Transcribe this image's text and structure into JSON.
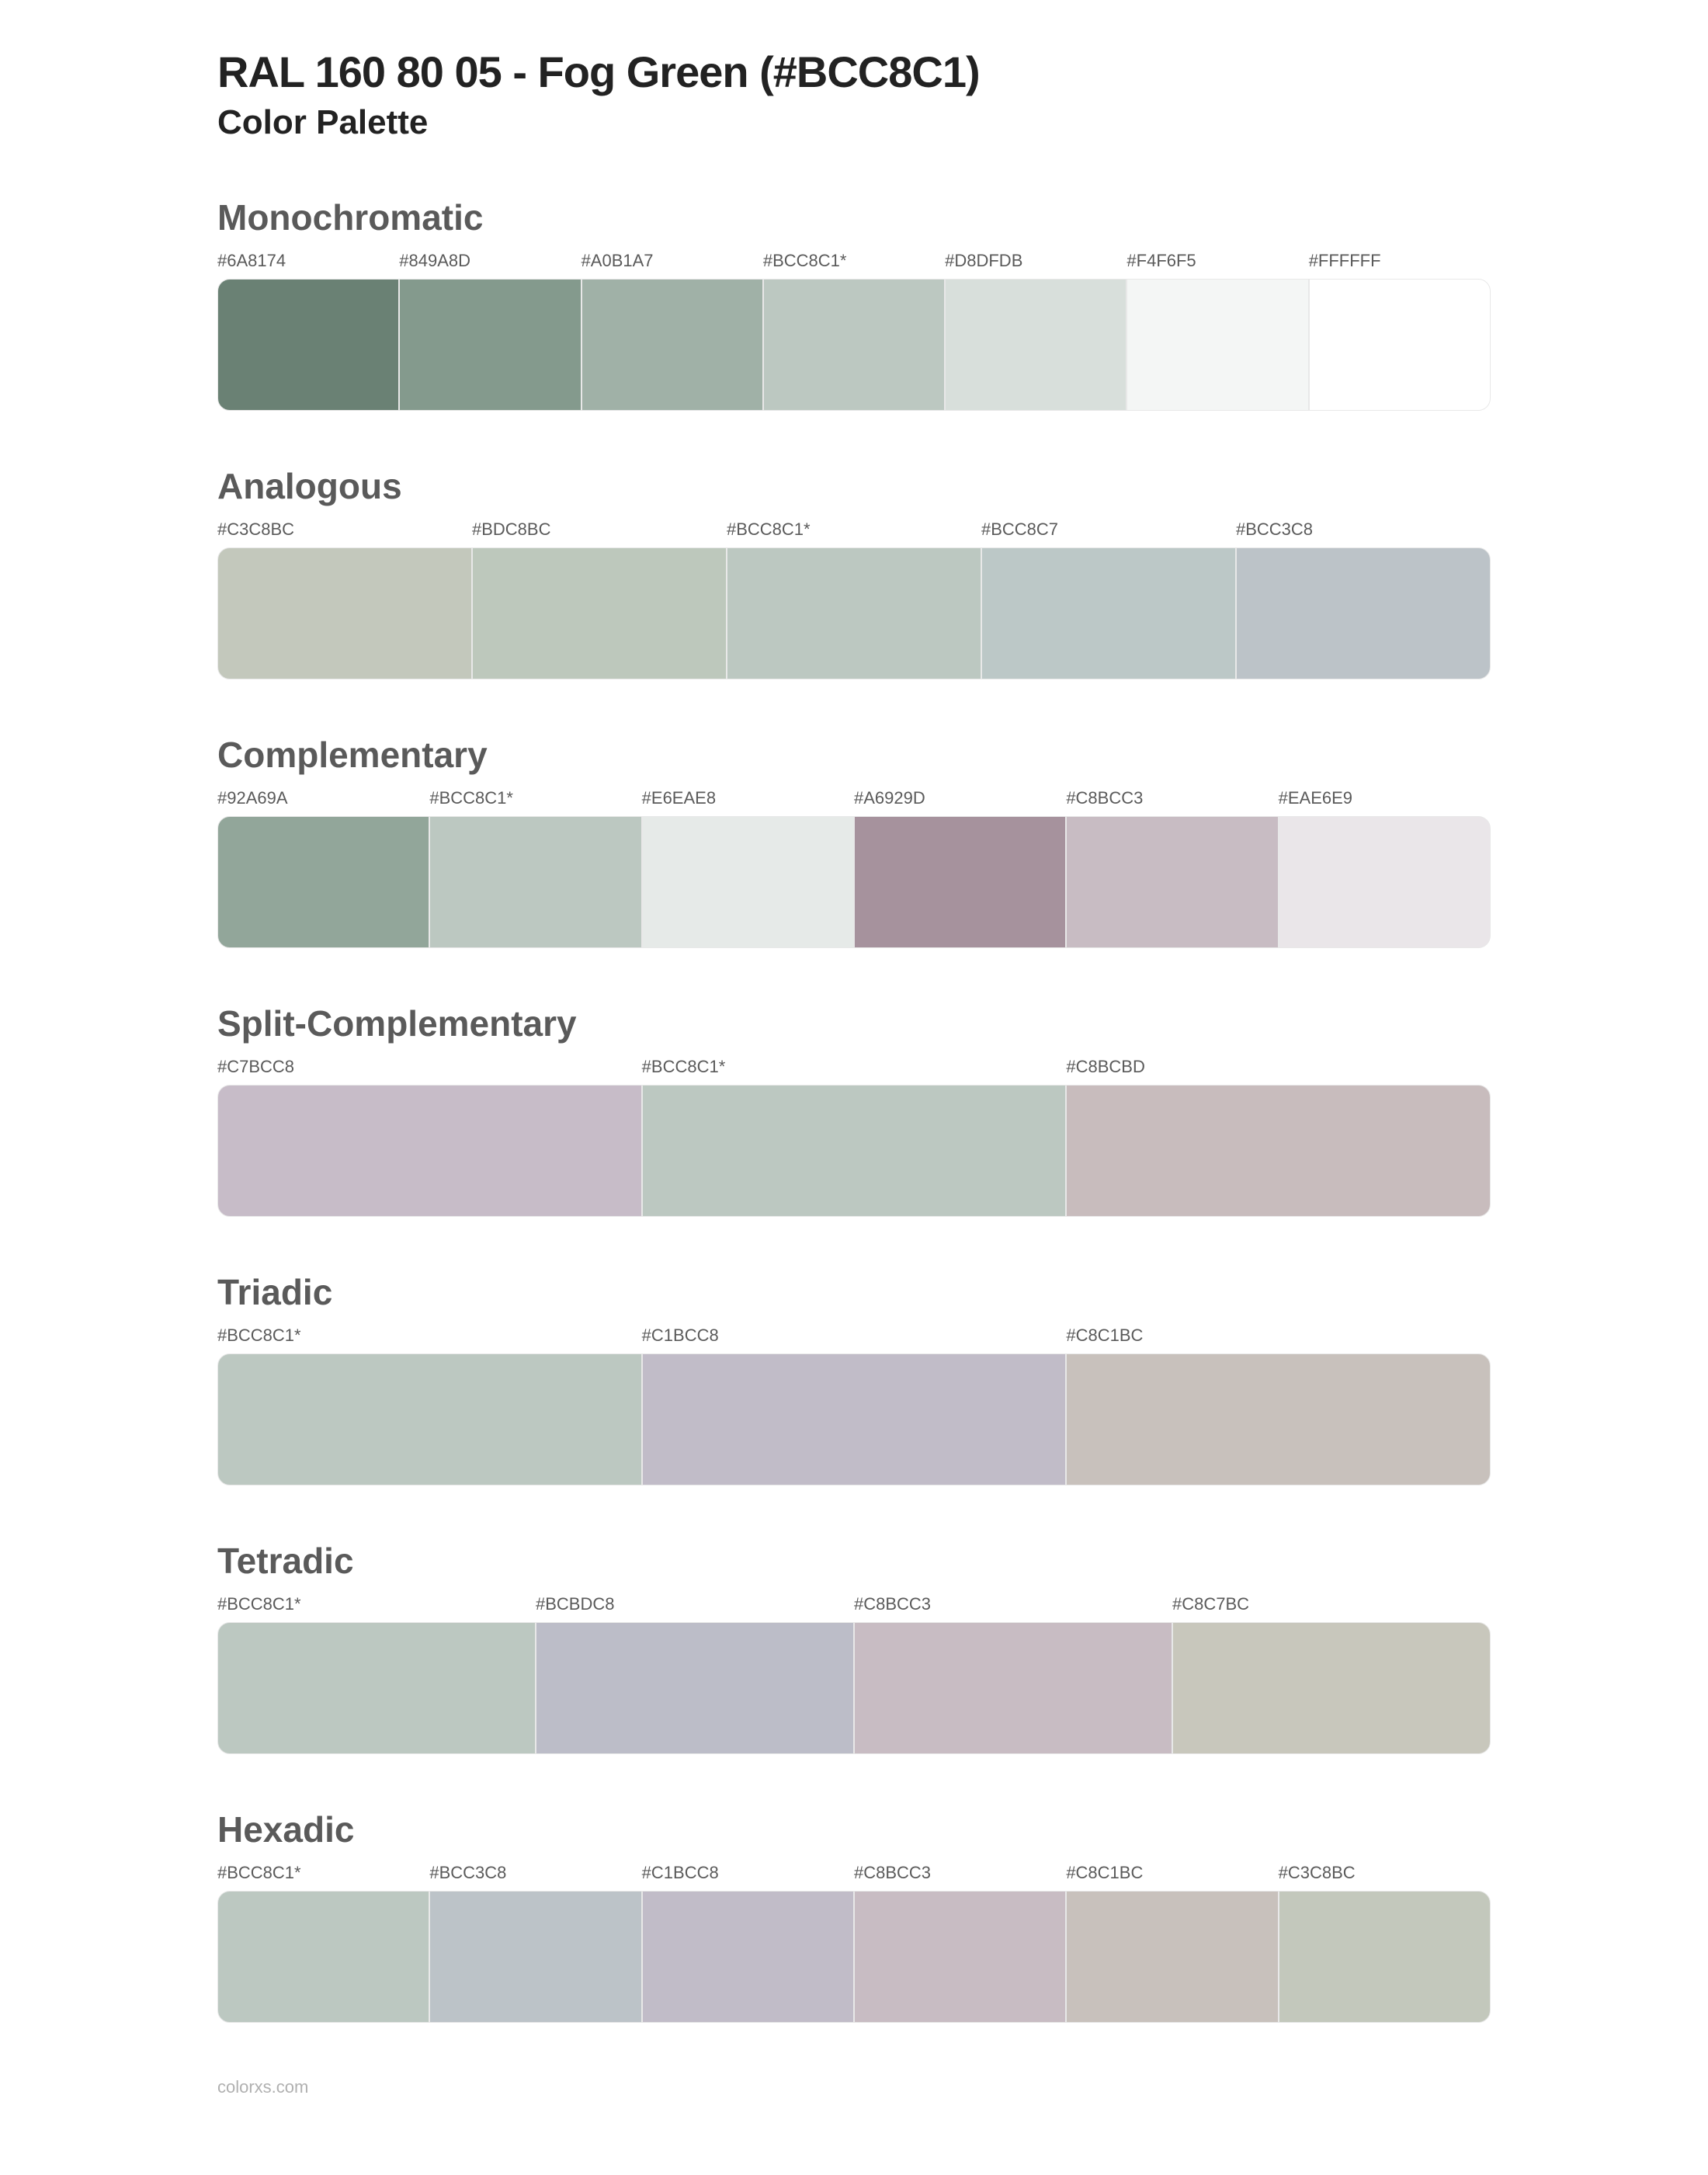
{
  "title": "RAL 160 80 05 - Fog Green (#BCC8C1)",
  "subtitle": "Color Palette",
  "footer": "colorxs.com",
  "swatch_height": 170,
  "section_heading_color": "#5a5a5a",
  "label_color": "#5a5a5a",
  "background_color": "#ffffff",
  "border_color": "#e8e8e8",
  "sections": [
    {
      "title": "Monochromatic",
      "swatches": [
        {
          "label": "#6A8174",
          "color": "#6A8174"
        },
        {
          "label": "#849A8D",
          "color": "#849A8D"
        },
        {
          "label": "#A0B1A7",
          "color": "#A0B1A7"
        },
        {
          "label": "#BCC8C1*",
          "color": "#BCC8C1"
        },
        {
          "label": "#D8DFDB",
          "color": "#D8DFDB"
        },
        {
          "label": "#F4F6F5",
          "color": "#F4F6F5"
        },
        {
          "label": "#FFFFFF",
          "color": "#FFFFFF"
        }
      ]
    },
    {
      "title": "Analogous",
      "swatches": [
        {
          "label": "#C3C8BC",
          "color": "#C3C8BC"
        },
        {
          "label": "#BDC8BC",
          "color": "#BDC8BC"
        },
        {
          "label": "#BCC8C1*",
          "color": "#BCC8C1"
        },
        {
          "label": "#BCC8C7",
          "color": "#BCC8C7"
        },
        {
          "label": "#BCC3C8",
          "color": "#BCC3C8"
        }
      ]
    },
    {
      "title": "Complementary",
      "swatches": [
        {
          "label": "#92A69A",
          "color": "#92A69A"
        },
        {
          "label": "#BCC8C1*",
          "color": "#BCC8C1"
        },
        {
          "label": "#E6EAE8",
          "color": "#E6EAE8"
        },
        {
          "label": "#A6929D",
          "color": "#A6929D"
        },
        {
          "label": "#C8BCC3",
          "color": "#C8BCC3"
        },
        {
          "label": "#EAE6E9",
          "color": "#EAE6E9"
        }
      ]
    },
    {
      "title": "Split-Complementary",
      "swatches": [
        {
          "label": "#C7BCC8",
          "color": "#C7BCC8"
        },
        {
          "label": "#BCC8C1*",
          "color": "#BCC8C1"
        },
        {
          "label": "#C8BCBD",
          "color": "#C8BCBD"
        }
      ]
    },
    {
      "title": "Triadic",
      "swatches": [
        {
          "label": "#BCC8C1*",
          "color": "#BCC8C1"
        },
        {
          "label": "#C1BCC8",
          "color": "#C1BCC8"
        },
        {
          "label": "#C8C1BC",
          "color": "#C8C1BC"
        }
      ]
    },
    {
      "title": "Tetradic",
      "swatches": [
        {
          "label": "#BCC8C1*",
          "color": "#BCC8C1"
        },
        {
          "label": "#BCBDC8",
          "color": "#BCBDC8"
        },
        {
          "label": "#C8BCC3",
          "color": "#C8BCC3"
        },
        {
          "label": "#C8C7BC",
          "color": "#C8C7BC"
        }
      ]
    },
    {
      "title": "Hexadic",
      "swatches": [
        {
          "label": "#BCC8C1*",
          "color": "#BCC8C1"
        },
        {
          "label": "#BCC3C8",
          "color": "#BCC3C8"
        },
        {
          "label": "#C1BCC8",
          "color": "#C1BCC8"
        },
        {
          "label": "#C8BCC3",
          "color": "#C8BCC3"
        },
        {
          "label": "#C8C1BC",
          "color": "#C8C1BC"
        },
        {
          "label": "#C3C8BC",
          "color": "#C3C8BC"
        }
      ]
    }
  ]
}
